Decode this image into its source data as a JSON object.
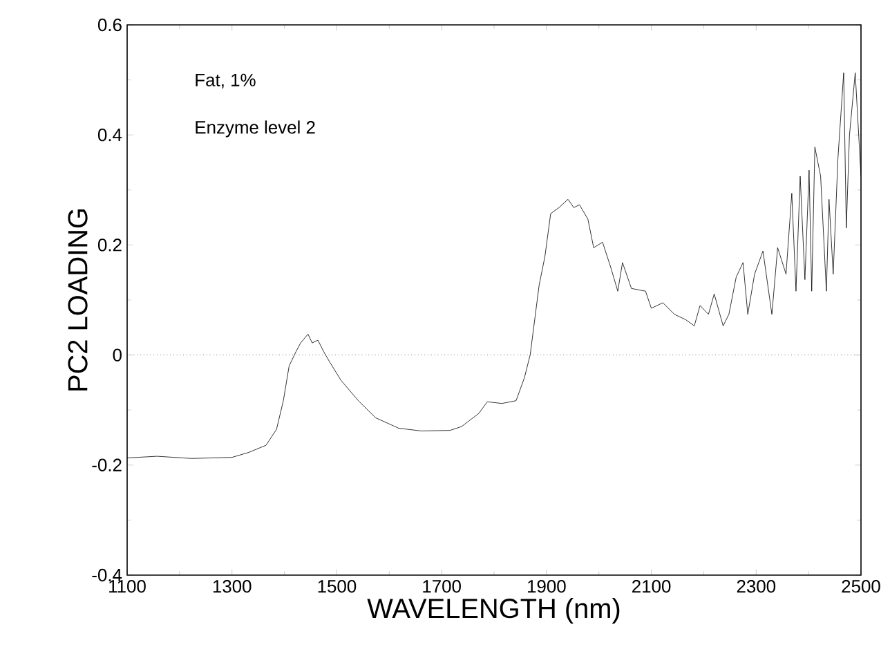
{
  "chart_data": {
    "type": "line",
    "xlabel": "WAVELENGTH (nm)",
    "ylabel": "PC2  LOADING",
    "annotations": [
      "Fat,  1%",
      "Enzyme level 2"
    ],
    "xlim": [
      1100,
      2500
    ],
    "ylim": [
      -0.4,
      0.6
    ],
    "xticks": [
      1100,
      1300,
      1500,
      1700,
      1900,
      2100,
      2300,
      2500
    ],
    "yticks": [
      {
        "value": -0.4,
        "label": "-0.4"
      },
      {
        "value": -0.2,
        "label": "-0.2"
      },
      {
        "value": 0,
        "label": "0"
      },
      {
        "value": 0.2,
        "label": "0.2"
      },
      {
        "value": 0.4,
        "label": "0.4"
      },
      {
        "value": 0.6,
        "label": "0.6"
      }
    ],
    "grid": false,
    "legend": false,
    "marker": "none",
    "line_style": "solid",
    "ref_lines": [
      {
        "axis": "y",
        "value": 0,
        "line_style": "dotted",
        "color": "#000000"
      }
    ],
    "series": [
      {
        "color": "#000000",
        "x": [
          1100,
          1157,
          1223,
          1300,
          1332,
          1365,
          1385,
          1398,
          1409,
          1422,
          1431,
          1445,
          1453,
          1464,
          1475,
          1486,
          1508,
          1541,
          1574,
          1618,
          1661,
          1716,
          1738,
          1771,
          1787,
          1815,
          1842,
          1858,
          1869,
          1886,
          1897,
          1908,
          1924,
          1941,
          1952,
          1963,
          1979,
          1990,
          2007,
          2023,
          2036,
          2045,
          2062,
          2089,
          2100,
          2122,
          2144,
          2166,
          2182,
          2193,
          2209,
          2220,
          2237,
          2248,
          2262,
          2275,
          2284,
          2297,
          2313,
          2330,
          2341,
          2357,
          2368,
          2376,
          2384,
          2393,
          2401,
          2406,
          2412,
          2423,
          2434,
          2439,
          2447,
          2456,
          2467,
          2472,
          2478,
          2489,
          2500
        ],
        "values": [
          -0.187,
          -0.184,
          -0.188,
          -0.186,
          -0.177,
          -0.164,
          -0.135,
          -0.083,
          -0.02,
          0.006,
          0.022,
          0.038,
          0.022,
          0.027,
          0.006,
          -0.012,
          -0.046,
          -0.083,
          -0.114,
          -0.133,
          -0.138,
          -0.137,
          -0.13,
          -0.106,
          -0.085,
          -0.088,
          -0.083,
          -0.041,
          0.001,
          0.127,
          0.179,
          0.257,
          0.268,
          0.283,
          0.268,
          0.273,
          0.247,
          0.195,
          0.205,
          0.158,
          0.116,
          0.168,
          0.121,
          0.116,
          0.085,
          0.095,
          0.074,
          0.064,
          0.053,
          0.09,
          0.074,
          0.111,
          0.053,
          0.074,
          0.142,
          0.168,
          0.074,
          0.147,
          0.189,
          0.074,
          0.195,
          0.147,
          0.294,
          0.116,
          0.325,
          0.137,
          0.336,
          0.116,
          0.378,
          0.325,
          0.116,
          0.283,
          0.147,
          0.357,
          0.513,
          0.231,
          0.399,
          0.513,
          0.325
        ]
      }
    ]
  }
}
